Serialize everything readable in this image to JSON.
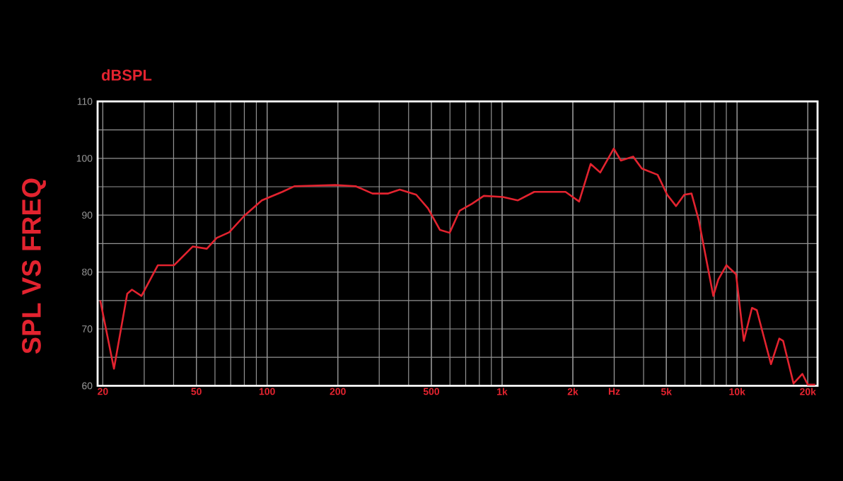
{
  "chart_data": {
    "type": "line",
    "title": "SPL VS FREQ",
    "ylabel": "dBSPL",
    "log": "x",
    "grid": true,
    "line_style": "solid",
    "xlim": [
      19,
      22000
    ],
    "ylim": [
      60,
      110
    ],
    "xticks": [
      20,
      50,
      100,
      200,
      500,
      {
        "value": 1000,
        "label": "1k"
      },
      {
        "value": 2000,
        "label": "2k"
      },
      {
        "value": 3000,
        "label": "Hz"
      },
      {
        "value": 5000,
        "label": "5k"
      },
      {
        "value": 10000,
        "label": "10k"
      },
      {
        "value": 20000,
        "label": "20k"
      }
    ],
    "yticks": [
      60,
      {
        "value": 65,
        "label": null
      },
      70,
      {
        "value": 75,
        "label": null
      },
      80,
      {
        "value": 85,
        "label": null
      },
      90,
      {
        "value": 95,
        "label": null
      },
      100,
      {
        "value": 105,
        "label": null
      },
      110
    ],
    "series": [
      {
        "color": "#e3232f",
        "x": [
          19.5,
          22.3,
          25.4,
          26.6,
          29.2,
          34.3,
          40.2,
          48.3,
          55.4,
          61,
          69,
          80,
          95,
          116,
          131,
          195,
          238,
          281,
          326,
          367,
          431,
          484,
          544,
          598,
          660,
          744,
          836,
          1008,
          1165,
          1370,
          1862,
          2127,
          2381,
          2616,
          2986,
          3204,
          3611,
          3932,
          4590,
          5040,
          5500,
          5960,
          6400,
          6870,
          7920,
          8320,
          9010,
          9900,
          10680,
          11570,
          12130,
          13940,
          15120,
          15700,
          17380,
          18950,
          20000,
          21500
        ],
        "values": [
          75,
          63,
          76.2,
          76.9,
          75.8,
          81.2,
          81.2,
          84.5,
          84.1,
          86,
          87,
          89.9,
          92.6,
          94.1,
          95.1,
          95.3,
          95.1,
          93.8,
          93.8,
          94.5,
          93.6,
          91.2,
          87.4,
          86.9,
          90.8,
          92,
          93.4,
          93.2,
          92.6,
          94.1,
          94.1,
          92.4,
          99,
          97.5,
          101.7,
          99.6,
          100.3,
          98.2,
          97.1,
          93.6,
          91.6,
          93.6,
          93.8,
          89.1,
          75.8,
          78.7,
          81.2,
          79.6,
          67.9,
          73.7,
          73.3,
          63.8,
          68.3,
          67.9,
          60.4,
          62.1,
          60.2,
          60.2
        ]
      }
    ]
  }
}
